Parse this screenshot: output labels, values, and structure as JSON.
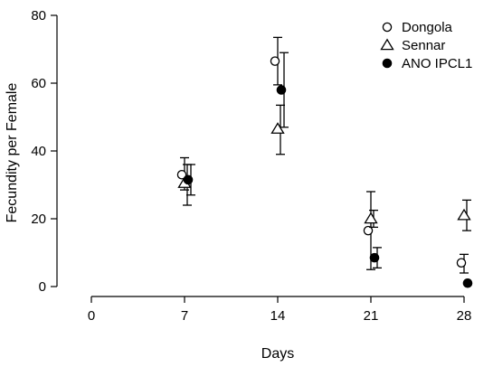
{
  "chart_data": {
    "type": "scatter",
    "title": "",
    "xlabel": "Days",
    "ylabel": "Fecundity per Female",
    "xlim": [
      0,
      28
    ],
    "ylim": [
      0,
      80
    ],
    "x_ticks": [
      0,
      7,
      14,
      21,
      28
    ],
    "x_tick_labels": [
      "0",
      "7",
      "14",
      "21",
      "28"
    ],
    "y_ticks": [
      0,
      20,
      40,
      60,
      80
    ],
    "y_tick_labels": [
      "0",
      "20",
      "40",
      "60",
      "80"
    ],
    "grid": false,
    "legend_position": "top-right",
    "series": [
      {
        "name": "Dongola",
        "marker": "open-circle",
        "points": [
          {
            "x": 7,
            "y": 33,
            "err_low": 28.5,
            "err_high": 38
          },
          {
            "x": 14,
            "y": 66.5,
            "err_low": 59.5,
            "err_high": 73.5
          },
          {
            "x": 21,
            "y": 16.5,
            "err_low": 5,
            "err_high": 28
          },
          {
            "x": 28,
            "y": 7,
            "err_low": 4,
            "err_high": 9.5
          }
        ]
      },
      {
        "name": "Sennar",
        "marker": "open-triangle",
        "points": [
          {
            "x": 7,
            "y": 30.5,
            "err_low": 24,
            "err_high": 36
          },
          {
            "x": 14,
            "y": 46.5,
            "err_low": 39,
            "err_high": 53.5
          },
          {
            "x": 21,
            "y": 20,
            "err_low": 17.5,
            "err_high": 22.5
          },
          {
            "x": 28,
            "y": 21,
            "err_low": 16.5,
            "err_high": 25.5
          }
        ]
      },
      {
        "name": "ANO IPCL1",
        "marker": "filled-circle",
        "points": [
          {
            "x": 7,
            "y": 31.5,
            "err_low": 27,
            "err_high": 36
          },
          {
            "x": 14,
            "y": 58,
            "err_low": 47,
            "err_high": 69
          },
          {
            "x": 21,
            "y": 8.5,
            "err_low": 5.5,
            "err_high": 11.5
          },
          {
            "x": 28,
            "y": 1,
            "err_low": null,
            "err_high": null
          }
        ]
      }
    ]
  }
}
